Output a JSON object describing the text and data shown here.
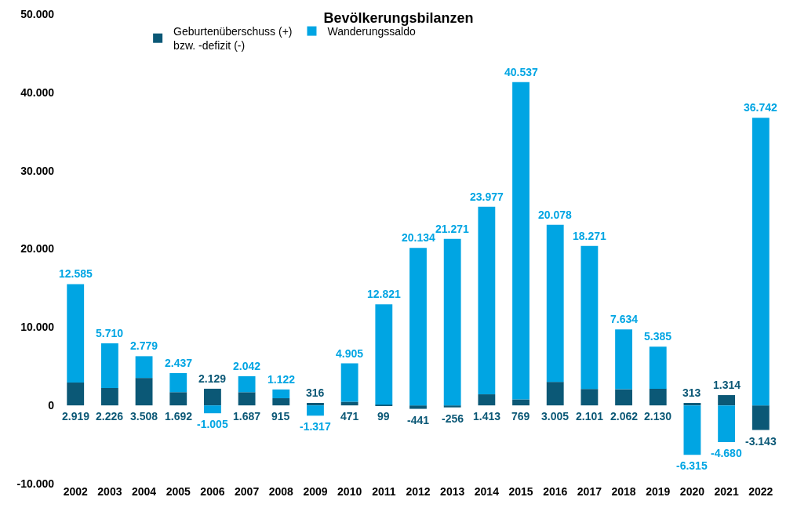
{
  "chart_data": {
    "type": "bar",
    "title": "Bevölkerungsbilanzen",
    "stacked": true,
    "legend": "top",
    "categories": [
      "2002",
      "2003",
      "2004",
      "2005",
      "2006",
      "2007",
      "2008",
      "2009",
      "2010",
      "2011",
      "2012",
      "2013",
      "2014",
      "2015",
      "2016",
      "2017",
      "2018",
      "2019",
      "2020",
      "2021",
      "2022"
    ],
    "series": [
      {
        "name": "Geburtenüberschuss (+)\nbzw. -defizit (-)",
        "color": "#0b5876",
        "values": [
          2919,
          2226,
          3508,
          1692,
          2129,
          1687,
          915,
          316,
          471,
          99,
          -441,
          -256,
          1413,
          769,
          3005,
          2101,
          2062,
          2130,
          313,
          1314,
          -3143
        ],
        "value_labels": [
          "2.919",
          "2.226",
          "3.508",
          "1.692",
          "2.129",
          "1.687",
          "915",
          "316",
          "471",
          "99",
          "-441",
          "-256",
          "1.413",
          "769",
          "3.005",
          "2.101",
          "2.062",
          "2.130",
          "313",
          "1.314",
          "-3.143"
        ]
      },
      {
        "name": "Wanderungssaldo",
        "color": "#00a5e3",
        "values": [
          12585,
          5710,
          2779,
          2437,
          -1005,
          2042,
          1122,
          -1317,
          4905,
          12821,
          20134,
          21271,
          23977,
          40537,
          20078,
          18271,
          7634,
          5385,
          -6315,
          -4680,
          36742
        ],
        "value_labels": [
          "12.585",
          "5.710",
          "2.779",
          "2.437",
          "-1.005",
          "2.042",
          "1.122",
          "-1.317",
          "4.905",
          "12.821",
          "20.134",
          "21.271",
          "23.977",
          "40.537",
          "20.078",
          "18.271",
          "7.634",
          "5.385",
          "-6.315",
          "-4.680",
          "36.742"
        ]
      }
    ],
    "ylim": [
      -10000,
      50000
    ],
    "yticks": [
      {
        "value": -10000,
        "label": "-10.000"
      },
      0,
      {
        "value": 10000,
        "label": "10.000"
      },
      {
        "value": 20000,
        "label": "20.000"
      },
      {
        "value": 30000,
        "label": "30.000"
      },
      {
        "value": 40000,
        "label": "40.000"
      },
      {
        "value": 50000,
        "label": "50.000"
      }
    ]
  }
}
